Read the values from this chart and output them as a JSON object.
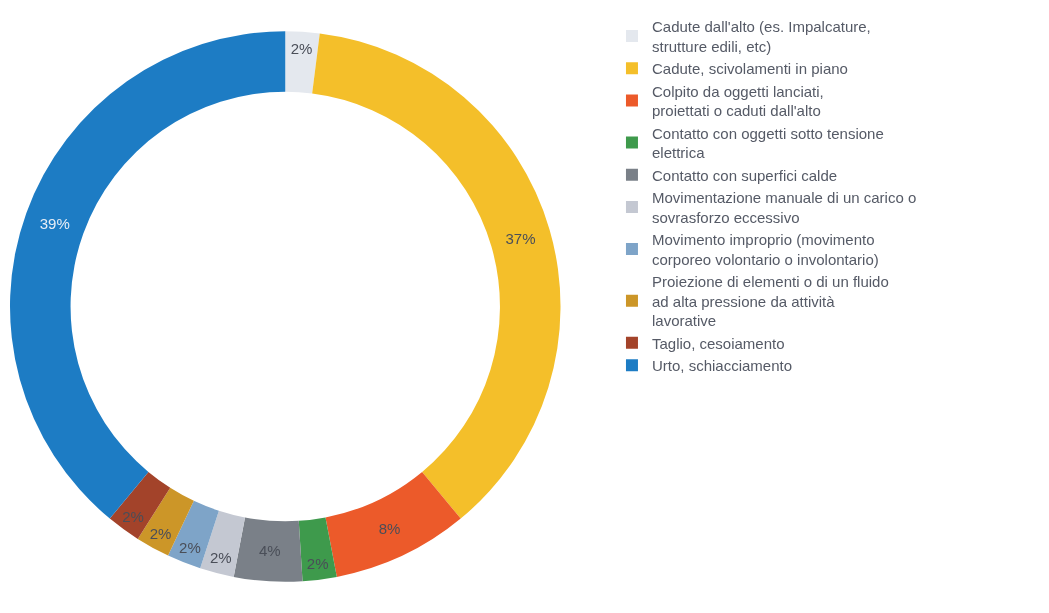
{
  "chart_data": {
    "type": "donut",
    "categories": [
      "Cadute dall'alto (es. Impalcature, strutture edili, etc)",
      "Cadute, scivolamenti in piano",
      "Colpito da oggetti lanciati, proiettati o caduti dall'alto",
      "Contatto con oggetti sotto tensione elettrica",
      "Contatto con superfici calde",
      "Movimentazione manuale di un carico o sovrasforzo eccessivo",
      "Movimento improprio (movimento corporeo volontario o involontario)",
      "Proiezione di elementi o di un fluido ad alta pressione da attività lavorative",
      "Taglio, cesoiamento",
      "Urto, schiacciamento"
    ],
    "values": [
      2,
      37,
      8,
      2,
      4,
      2,
      2,
      2,
      2,
      39
    ],
    "value_labels": [
      "2%",
      "37%",
      "8%",
      "2%",
      "4%",
      "2%",
      "2%",
      "2%",
      "2%",
      "39%"
    ],
    "colors": [
      "#e4e8ee",
      "#f4bf2a",
      "#ec5a2a",
      "#3e9a4c",
      "#7a8088",
      "#c4c8d2",
      "#7ea4c8",
      "#cc9628",
      "#a3432a",
      "#1d7cc4"
    ],
    "legend": "right"
  }
}
